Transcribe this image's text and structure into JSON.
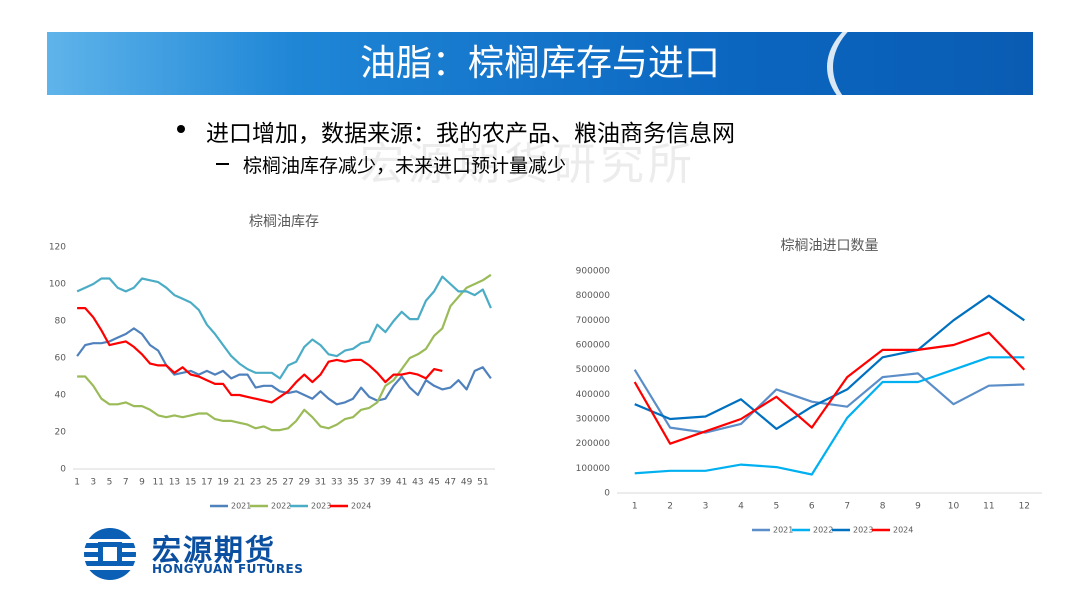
{
  "slide": {
    "title": "油脂：棕榈库存与进口",
    "bullet": "进口增加，数据来源：我的农产品、粮油商务信息网",
    "sub_bullet": "棕榈油库存减少，未来进口预计量减少",
    "watermark": "宏源期货研究所",
    "logo_cn": "宏源期货",
    "logo_en": "HONGYUAN FUTURES"
  },
  "chart_data": [
    {
      "type": "line",
      "title": "棕榈油库存",
      "categories": [
        1,
        null,
        3,
        null,
        5,
        null,
        7,
        null,
        9,
        null,
        11,
        null,
        13,
        null,
        15,
        null,
        17,
        null,
        19,
        null,
        21,
        null,
        23,
        null,
        25,
        null,
        27,
        null,
        29,
        null,
        31,
        null,
        33,
        null,
        35,
        null,
        37,
        null,
        39,
        null,
        41,
        null,
        43,
        null,
        45,
        null,
        47,
        null,
        49,
        null,
        51,
        null
      ],
      "ylim": [
        0,
        120
      ],
      "yticks": [
        0,
        20,
        40,
        60,
        80,
        100,
        120
      ],
      "grid": false,
      "legend": "bottom",
      "series": [
        {
          "name": "2021",
          "color": "#4f81bd",
          "values": [
            61,
            67,
            68,
            68,
            69,
            71,
            73,
            76,
            73,
            67,
            64,
            56,
            51,
            52,
            53,
            51,
            53,
            51,
            53,
            49,
            51,
            51,
            44,
            45,
            45,
            42,
            41,
            42,
            40,
            38,
            42,
            38,
            35,
            36,
            38,
            44,
            39,
            37,
            38,
            45,
            50,
            44,
            40,
            48,
            45,
            43,
            44,
            48,
            43,
            53,
            55,
            49
          ]
        },
        {
          "name": "2022",
          "color": "#9bbb59",
          "values": [
            50,
            50,
            45,
            38,
            35,
            35,
            36,
            34,
            34,
            32,
            29,
            28,
            29,
            28,
            29,
            30,
            30,
            27,
            26,
            26,
            25,
            24,
            22,
            23,
            21,
            21,
            22,
            26,
            32,
            28,
            23,
            22,
            24,
            27,
            28,
            32,
            33,
            36,
            45,
            48,
            54,
            60,
            62,
            65,
            72,
            76,
            88,
            93,
            98,
            100,
            102,
            105
          ]
        },
        {
          "name": "2023",
          "color": "#4bacc6",
          "values": [
            96,
            98,
            100,
            103,
            103,
            98,
            96,
            98,
            103,
            102,
            101,
            98,
            94,
            92,
            90,
            86,
            78,
            73,
            67,
            61,
            57,
            54,
            52,
            52,
            52,
            49,
            56,
            58,
            66,
            70,
            67,
            62,
            61,
            64,
            65,
            68,
            69,
            78,
            74,
            80,
            85,
            81,
            81,
            91,
            96,
            104,
            100,
            96,
            96,
            94,
            97,
            87
          ]
        },
        {
          "name": "2024",
          "color": "#ff0000",
          "values": [
            87,
            87,
            82,
            75,
            67,
            68,
            69,
            66,
            62,
            57,
            56,
            56,
            52,
            55,
            51,
            50,
            48,
            46,
            46,
            40,
            40,
            39,
            38,
            37,
            36,
            39,
            42,
            47,
            51,
            47,
            51,
            58,
            59,
            58,
            59,
            59,
            56,
            52,
            47,
            51,
            51,
            52,
            51,
            49,
            54,
            53,
            null,
            null,
            null,
            null,
            null,
            null
          ]
        }
      ]
    },
    {
      "type": "line",
      "title": "棕榈油进口数量",
      "categories": [
        1,
        2,
        3,
        4,
        5,
        6,
        7,
        8,
        9,
        10,
        11,
        12
      ],
      "ylim": [
        0,
        900000
      ],
      "yticks": [
        0,
        100000,
        200000,
        300000,
        400000,
        500000,
        600000,
        700000,
        800000,
        900000
      ],
      "grid": false,
      "legend": "bottom",
      "series": [
        {
          "name": "2021",
          "color": "#5b8ec9",
          "values": [
            500000,
            265000,
            245000,
            280000,
            420000,
            370000,
            350000,
            470000,
            485000,
            360000,
            435000,
            440000
          ]
        },
        {
          "name": "2022",
          "color": "#00b0f0",
          "values": [
            80000,
            90000,
            90000,
            115000,
            105000,
            75000,
            305000,
            450000,
            450000,
            500000,
            550000,
            550000
          ]
        },
        {
          "name": "2023",
          "color": "#0070c0",
          "values": [
            360000,
            300000,
            310000,
            380000,
            260000,
            350000,
            420000,
            550000,
            580000,
            700000,
            800000,
            700000
          ]
        },
        {
          "name": "2024",
          "color": "#ff0000",
          "values": [
            450000,
            200000,
            250000,
            300000,
            390000,
            265000,
            470000,
            580000,
            580000,
            600000,
            650000,
            500000
          ]
        }
      ]
    }
  ]
}
